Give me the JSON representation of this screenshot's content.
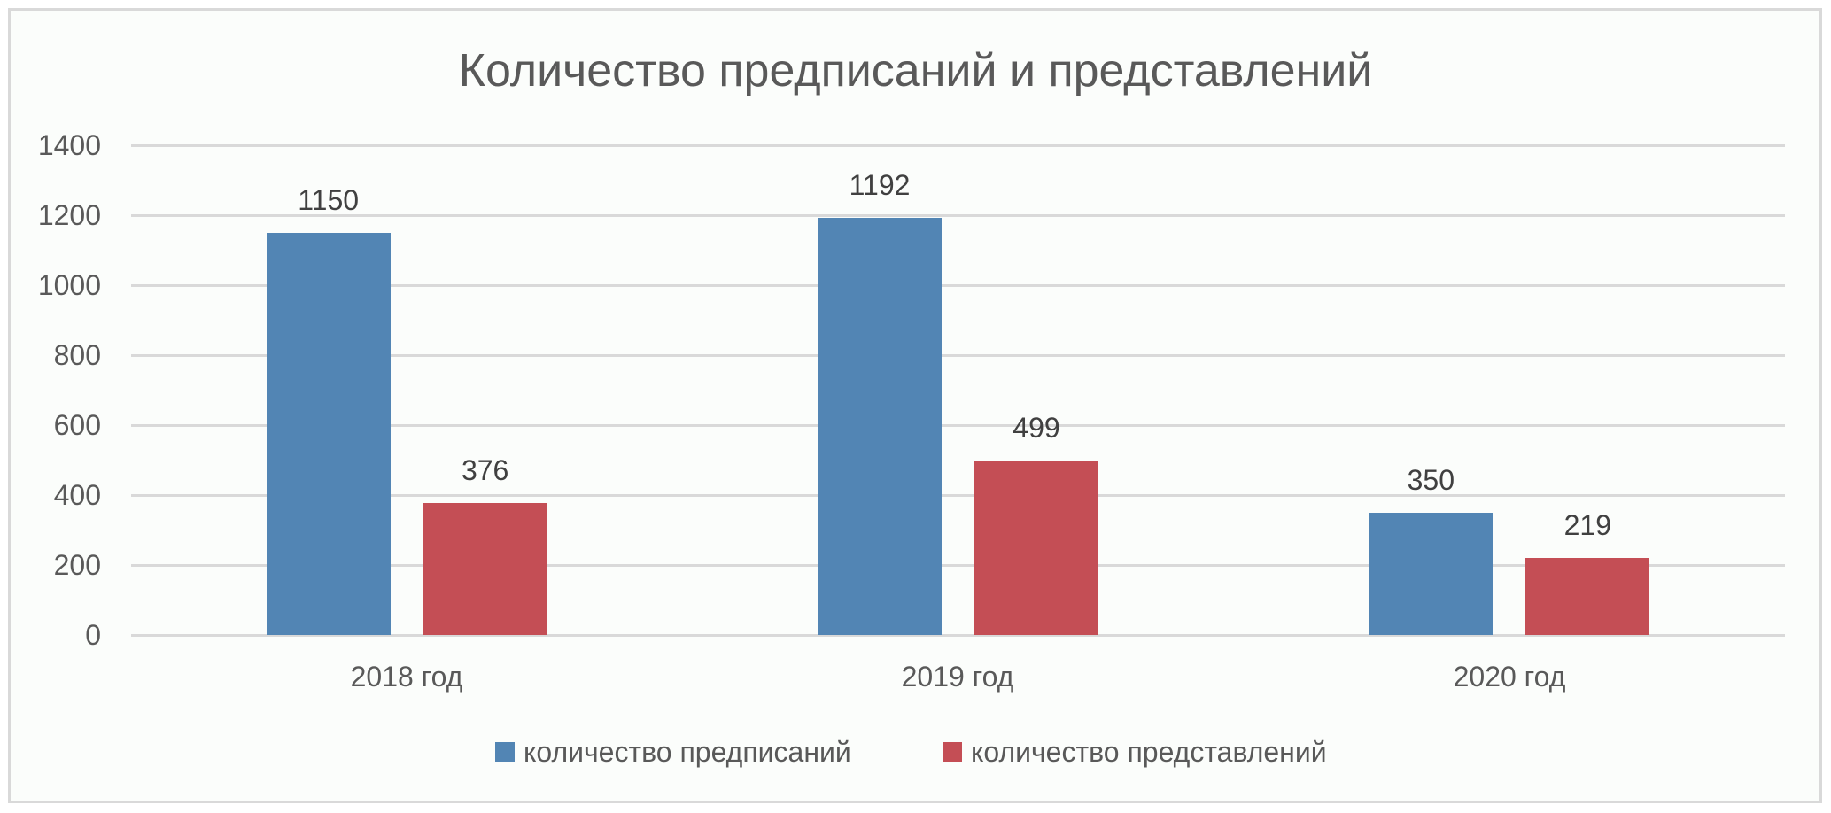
{
  "chart_data": {
    "type": "bar",
    "title": "Количество предписаний и представлений",
    "categories": [
      "2018 год",
      "2019 год",
      "2020 год"
    ],
    "series": [
      {
        "name": "количество предписаний",
        "values": [
          1150,
          1192,
          350
        ],
        "color": "#5285b4"
      },
      {
        "name": "количество представлений",
        "values": [
          376,
          499,
          219
        ],
        "color": "#c44e55"
      }
    ],
    "xlabel": "",
    "ylabel": "",
    "ylim": [
      0,
      1400
    ],
    "yticks": [
      0,
      200,
      400,
      600,
      800,
      1000,
      1200,
      1400
    ],
    "grid": true,
    "legend_position": "bottom",
    "data_labels": true
  },
  "title": "Количество предписаний и представлений",
  "y_axis": {
    "ticks": [
      "1400",
      "1200",
      "1000",
      "800",
      "600",
      "400",
      "200",
      "0"
    ]
  },
  "x_axis": {
    "labels": [
      "2018 год",
      "2019 год",
      "2020 год"
    ]
  },
  "data_labels": {
    "predpisaniy": [
      "1150",
      "1192",
      "350"
    ],
    "predstavleniy": [
      "376",
      "499",
      "219"
    ]
  },
  "legend": {
    "items": [
      {
        "label": "количество предписаний",
        "color": "#5285b4"
      },
      {
        "label": "количество представлений",
        "color": "#c44e55"
      }
    ]
  },
  "colors": {
    "series_1": "#5285b4",
    "series_2": "#c44e55",
    "gridline": "#d9d9d9",
    "background": "#fbfdfb"
  }
}
